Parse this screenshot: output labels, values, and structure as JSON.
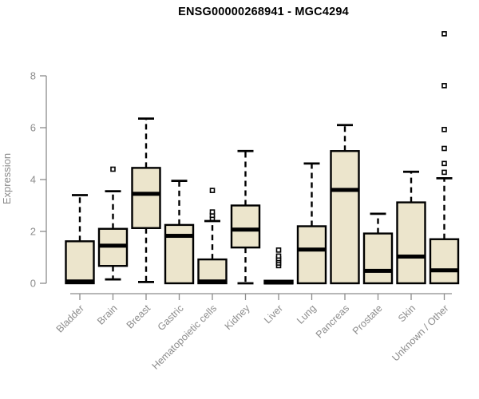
{
  "chart_data": {
    "type": "boxplot",
    "title": "ENSG00000268941 - MGC4294",
    "ylabel": "Expression",
    "xlabel": "",
    "ylim": [
      0,
      9.8
    ],
    "yticks": [
      0,
      2,
      4,
      6,
      8
    ],
    "grid": false,
    "legend": "none",
    "axis_color": "#8c8c8c",
    "text_color": "#8c8c8c",
    "title_color": "#000000",
    "box_fill": "#ece5cc",
    "box_border": "#000000",
    "categories": [
      "Bladder",
      "Brain",
      "Breast",
      "Gastric",
      "Hematopoietic cells",
      "Kidney",
      "Liver",
      "Lung",
      "Pancreas",
      "Prostate",
      "Skin",
      "Unknown / Other"
    ],
    "series": [
      {
        "category": "Bladder",
        "whisker_low": null,
        "q1": 0,
        "median": 0.07,
        "q3": 1.62,
        "whisker_high": 3.4,
        "outliers": []
      },
      {
        "category": "Brain",
        "whisker_low": 0.15,
        "q1": 0.67,
        "median": 1.45,
        "q3": 2.1,
        "whisker_high": 3.55,
        "outliers": [
          4.4
        ]
      },
      {
        "category": "Breast",
        "whisker_low": 0.05,
        "q1": 2.13,
        "median": 3.45,
        "q3": 4.45,
        "whisker_high": 6.35,
        "outliers": []
      },
      {
        "category": "Gastric",
        "whisker_low": null,
        "q1": 0,
        "median": 1.83,
        "q3": 2.25,
        "whisker_high": 3.95,
        "outliers": []
      },
      {
        "category": "Hematopoietic cells",
        "whisker_low": null,
        "q1": 0,
        "median": 0.07,
        "q3": 0.92,
        "whisker_high": 2.4,
        "outliers": [
          2.5,
          2.62,
          2.75,
          3.58
        ]
      },
      {
        "category": "Kidney",
        "whisker_low": 0,
        "q1": 1.38,
        "median": 2.07,
        "q3": 3.0,
        "whisker_high": 5.1,
        "outliers": []
      },
      {
        "category": "Liver",
        "whisker_low": null,
        "q1": 0,
        "median": 0.03,
        "q3": 0.1,
        "whisker_high": null,
        "outliers": [
          0.68,
          0.78,
          0.87,
          0.95,
          1.05,
          1.28
        ]
      },
      {
        "category": "Lung",
        "whisker_low": null,
        "q1": 0,
        "median": 1.3,
        "q3": 2.2,
        "whisker_high": 4.62,
        "outliers": []
      },
      {
        "category": "Pancreas",
        "whisker_low": null,
        "q1": 0,
        "median": 3.6,
        "q3": 5.1,
        "whisker_high": 6.1,
        "outliers": []
      },
      {
        "category": "Prostate",
        "whisker_low": null,
        "q1": 0,
        "median": 0.48,
        "q3": 1.92,
        "whisker_high": 2.68,
        "outliers": []
      },
      {
        "category": "Skin",
        "whisker_low": null,
        "q1": 0,
        "median": 1.03,
        "q3": 3.12,
        "whisker_high": 4.3,
        "outliers": []
      },
      {
        "category": "Unknown / Other",
        "whisker_low": null,
        "q1": 0,
        "median": 0.5,
        "q3": 1.7,
        "whisker_high": 4.05,
        "outliers": [
          4.28,
          4.62,
          5.2,
          5.93,
          7.62,
          9.62
        ]
      }
    ]
  }
}
